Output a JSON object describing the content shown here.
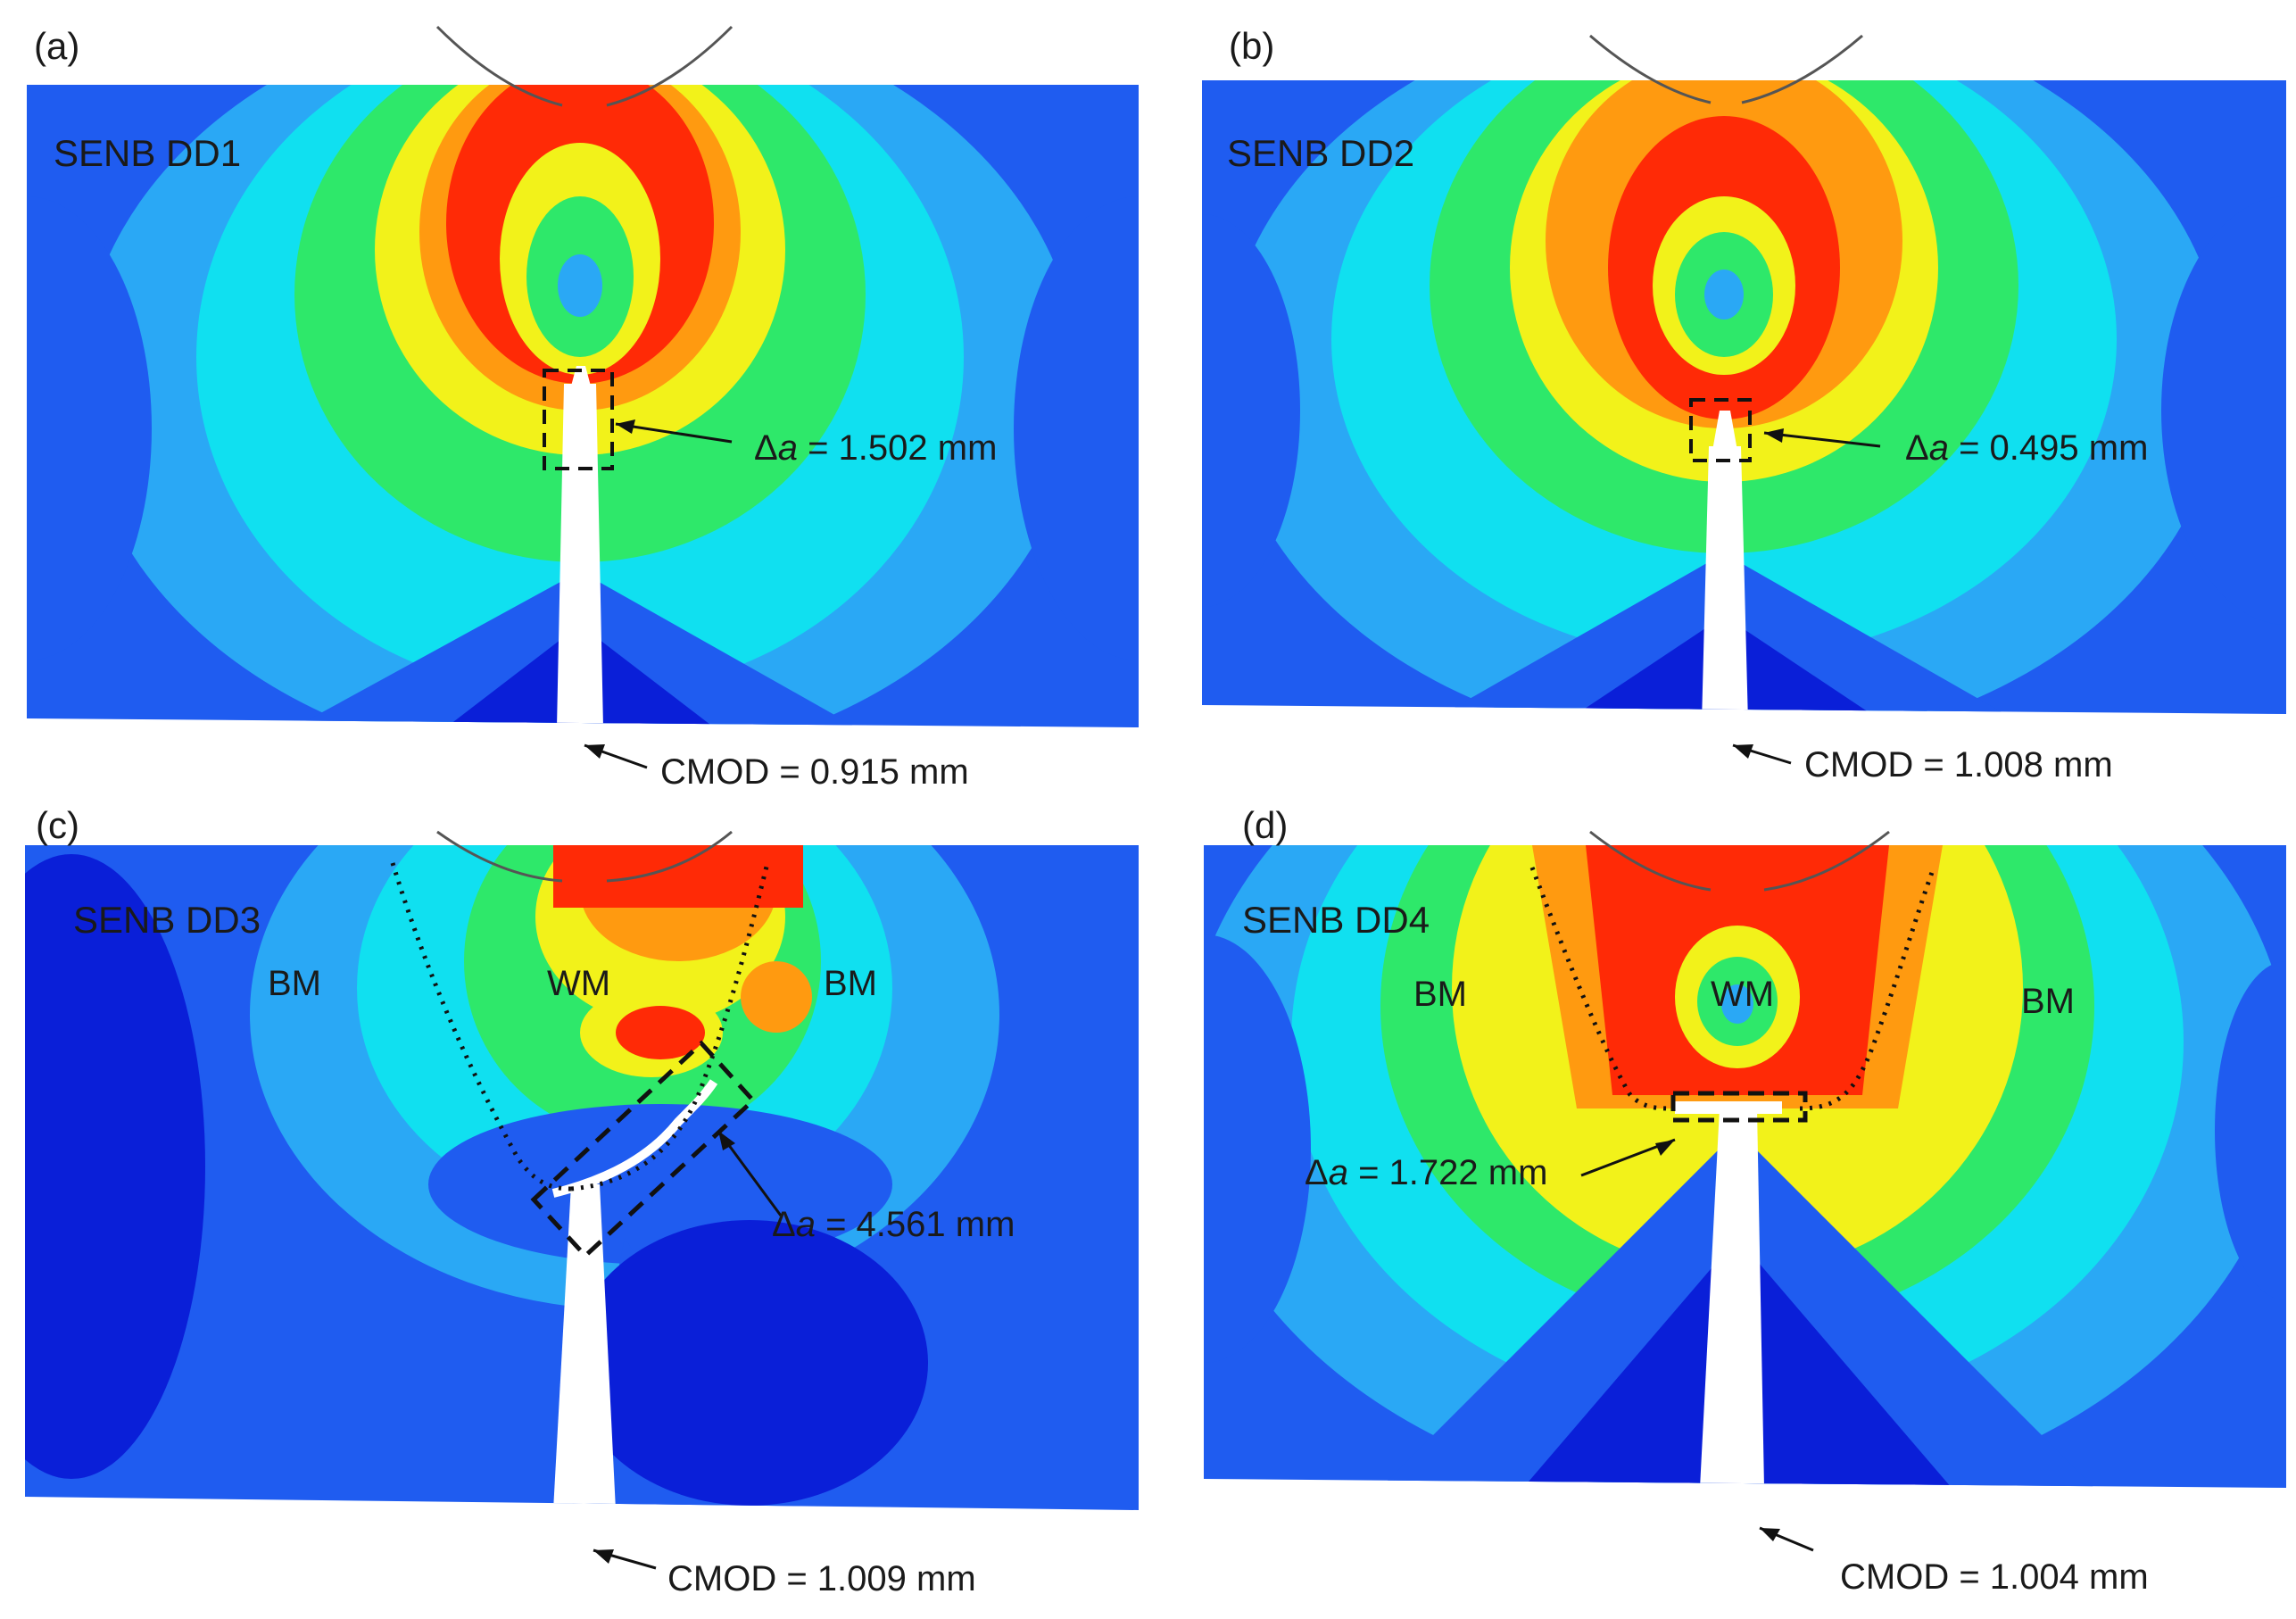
{
  "panels": [
    {
      "tag": "(a)",
      "specimen": "SENB DD1",
      "delta_symbol": "Δ",
      "delta_var": "a",
      "delta_value": " = 1.502 mm",
      "cmod": "CMOD = 0.915 mm",
      "regions": []
    },
    {
      "tag": "(b)",
      "specimen": "SENB DD2",
      "delta_symbol": "Δ",
      "delta_var": "a",
      "delta_value": " = 0.495 mm",
      "cmod": "CMOD = 1.008 mm",
      "regions": []
    },
    {
      "tag": "(c)",
      "specimen": "SENB DD3",
      "delta_symbol": "Δ",
      "delta_var": "a",
      "delta_value": " = 4.561 mm",
      "cmod": "CMOD = 1.009 mm",
      "regions": [
        "BM",
        "WM",
        "BM"
      ]
    },
    {
      "tag": "(d)",
      "specimen": "SENB DD4",
      "delta_symbol": "Δ",
      "delta_var": "a",
      "delta_value": " = 1.722 mm",
      "cmod": "CMOD = 1.004 mm",
      "regions": [
        "BM",
        "WM",
        "BM"
      ]
    }
  ],
  "colors": {
    "deep_blue": "#0a1fd8",
    "blue": "#1f5cf0",
    "light_blue": "#2aa8f5",
    "cyan": "#10e0f0",
    "green": "#2ee86a",
    "yellow": "#f2f21a",
    "orange": "#ff9a10",
    "red": "#ff2a06"
  }
}
